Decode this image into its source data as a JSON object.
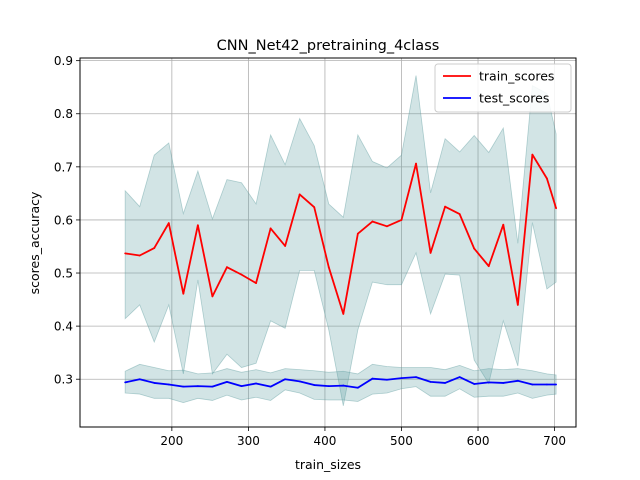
{
  "chart_data": {
    "type": "line",
    "title": "CNN_Net42_pretraining_4class",
    "xlabel": "train_sizes",
    "ylabel": "scores_accuracy",
    "xlim": [
      80,
      728
    ],
    "ylim": [
      0.21,
      0.905
    ],
    "xticks": [
      200,
      300,
      400,
      500,
      600,
      700
    ],
    "yticks": [
      0.3,
      0.4,
      0.5,
      0.6,
      0.7,
      0.8,
      0.9
    ],
    "grid": true,
    "legend_position": "top-right",
    "x": [
      139,
      158,
      177,
      196,
      215,
      234,
      253,
      272,
      291,
      310,
      329,
      348,
      367,
      386,
      405,
      424,
      443,
      462,
      481,
      500,
      519,
      538,
      557,
      576,
      595,
      614,
      633,
      652,
      671,
      690,
      702
    ],
    "series": [
      {
        "name": "train_scores",
        "color": "#ff0000",
        "values": [
          0.537,
          0.533,
          0.547,
          0.594,
          0.461,
          0.59,
          0.456,
          0.511,
          0.497,
          0.481,
          0.584,
          0.551,
          0.648,
          0.624,
          0.511,
          0.423,
          0.574,
          0.597,
          0.588,
          0.6,
          0.706,
          0.538,
          0.625,
          0.611,
          0.546,
          0.513,
          0.591,
          0.44,
          0.723,
          0.678,
          0.622
        ],
        "band_low": [
          0.414,
          0.44,
          0.37,
          0.44,
          0.31,
          0.487,
          0.31,
          0.347,
          0.322,
          0.33,
          0.41,
          0.396,
          0.505,
          0.505,
          0.393,
          0.25,
          0.393,
          0.483,
          0.478,
          0.478,
          0.538,
          0.423,
          0.498,
          0.496,
          0.336,
          0.292,
          0.41,
          0.325,
          0.595,
          0.47,
          0.483
        ],
        "band_high": [
          0.655,
          0.625,
          0.722,
          0.745,
          0.612,
          0.692,
          0.602,
          0.676,
          0.67,
          0.63,
          0.76,
          0.704,
          0.791,
          0.74,
          0.63,
          0.605,
          0.76,
          0.71,
          0.698,
          0.722,
          0.872,
          0.651,
          0.753,
          0.728,
          0.759,
          0.727,
          0.773,
          0.556,
          0.853,
          0.838,
          0.762
        ]
      },
      {
        "name": "test_scores",
        "color": "#0000ff",
        "values": [
          0.294,
          0.3,
          0.293,
          0.29,
          0.286,
          0.287,
          0.286,
          0.295,
          0.287,
          0.292,
          0.286,
          0.3,
          0.296,
          0.289,
          0.287,
          0.288,
          0.284,
          0.301,
          0.299,
          0.302,
          0.304,
          0.295,
          0.293,
          0.304,
          0.291,
          0.294,
          0.293,
          0.297,
          0.29,
          0.29,
          0.29
        ],
        "band_low": [
          0.274,
          0.272,
          0.264,
          0.264,
          0.256,
          0.264,
          0.26,
          0.27,
          0.261,
          0.266,
          0.26,
          0.28,
          0.274,
          0.262,
          0.261,
          0.261,
          0.258,
          0.272,
          0.274,
          0.282,
          0.286,
          0.268,
          0.268,
          0.282,
          0.266,
          0.268,
          0.268,
          0.274,
          0.264,
          0.27,
          0.272
        ],
        "band_high": [
          0.315,
          0.328,
          0.322,
          0.316,
          0.317,
          0.31,
          0.312,
          0.32,
          0.313,
          0.318,
          0.312,
          0.32,
          0.318,
          0.316,
          0.313,
          0.315,
          0.31,
          0.328,
          0.324,
          0.322,
          0.322,
          0.322,
          0.318,
          0.326,
          0.316,
          0.32,
          0.318,
          0.32,
          0.316,
          0.31,
          0.308
        ]
      }
    ],
    "band_color": "#5f9ea0"
  }
}
